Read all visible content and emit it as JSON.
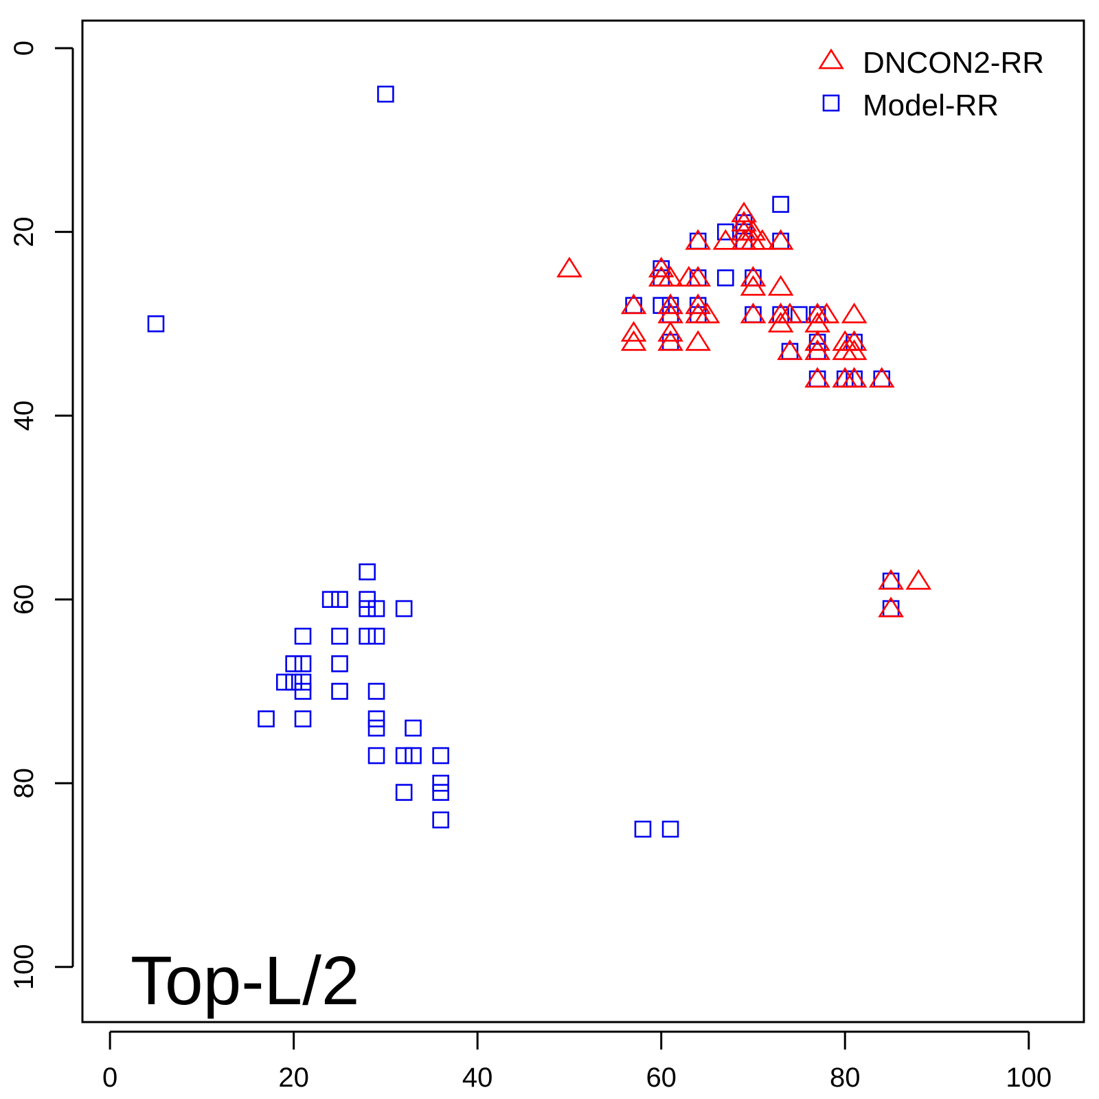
{
  "chart_data": {
    "type": "scatter",
    "title": "",
    "xlabel": "",
    "ylabel": "",
    "panel_label": "Top-L/2",
    "xlim": [
      -3,
      106
    ],
    "ylim": [
      -3,
      106
    ],
    "y_reversed": true,
    "x_ticks": [
      "0",
      "20",
      "40",
      "60",
      "80",
      "100"
    ],
    "y_ticks": [
      "0",
      "20",
      "40",
      "60",
      "80",
      "100"
    ],
    "grid": false,
    "legend": {
      "placement": "top-right",
      "entries": [
        {
          "label": "DNCON2-RR",
          "marker": "triangle",
          "color": "#ff0000"
        },
        {
          "label": "Model-RR",
          "marker": "square",
          "color": "#0000ee"
        }
      ]
    },
    "series": [
      {
        "name": "DNCON2-RR",
        "marker": "triangle",
        "color": "#ff0000",
        "points": [
          [
            50,
            24
          ],
          [
            57,
            28
          ],
          [
            57,
            31
          ],
          [
            57,
            32
          ],
          [
            60,
            24
          ],
          [
            60,
            25
          ],
          [
            61,
            25
          ],
          [
            61,
            28
          ],
          [
            61,
            29
          ],
          [
            61,
            31
          ],
          [
            61,
            32
          ],
          [
            63,
            25
          ],
          [
            64,
            21
          ],
          [
            64,
            25
          ],
          [
            64,
            28
          ],
          [
            64,
            29
          ],
          [
            64,
            32
          ],
          [
            65,
            29
          ],
          [
            67,
            21
          ],
          [
            69,
            18
          ],
          [
            69,
            19
          ],
          [
            69,
            20
          ],
          [
            69,
            21
          ],
          [
            70,
            20
          ],
          [
            70,
            21
          ],
          [
            71,
            21
          ],
          [
            70,
            25
          ],
          [
            70,
            26
          ],
          [
            70,
            29
          ],
          [
            73,
            21
          ],
          [
            73,
            26
          ],
          [
            73,
            29
          ],
          [
            73,
            30
          ],
          [
            74,
            29
          ],
          [
            74,
            33
          ],
          [
            77,
            29
          ],
          [
            77,
            30
          ],
          [
            77,
            32
          ],
          [
            77,
            33
          ],
          [
            77,
            36
          ],
          [
            78,
            29
          ],
          [
            80,
            32
          ],
          [
            80,
            33
          ],
          [
            80,
            36
          ],
          [
            81,
            29
          ],
          [
            81,
            32
          ],
          [
            81,
            33
          ],
          [
            81,
            36
          ],
          [
            84,
            36
          ],
          [
            85,
            58
          ],
          [
            85,
            61
          ],
          [
            88,
            58
          ]
        ]
      },
      {
        "name": "Model-RR",
        "marker": "square",
        "color": "#0000ee",
        "points": [
          [
            5,
            30
          ],
          [
            30,
            5
          ],
          [
            17,
            73
          ],
          [
            19,
            69
          ],
          [
            20,
            67
          ],
          [
            20,
            69
          ],
          [
            21,
            64
          ],
          [
            21,
            67
          ],
          [
            21,
            69
          ],
          [
            21,
            70
          ],
          [
            21,
            73
          ],
          [
            24,
            60
          ],
          [
            25,
            60
          ],
          [
            25,
            64
          ],
          [
            25,
            67
          ],
          [
            25,
            70
          ],
          [
            28,
            57
          ],
          [
            28,
            60
          ],
          [
            28,
            61
          ],
          [
            28,
            64
          ],
          [
            29,
            61
          ],
          [
            29,
            64
          ],
          [
            29,
            70
          ],
          [
            29,
            73
          ],
          [
            29,
            74
          ],
          [
            29,
            77
          ],
          [
            32,
            61
          ],
          [
            32,
            77
          ],
          [
            32,
            81
          ],
          [
            33,
            74
          ],
          [
            33,
            77
          ],
          [
            36,
            77
          ],
          [
            36,
            80
          ],
          [
            36,
            81
          ],
          [
            36,
            84
          ],
          [
            58,
            85
          ],
          [
            61,
            85
          ],
          [
            57,
            28
          ],
          [
            60,
            24
          ],
          [
            60,
            25
          ],
          [
            60,
            28
          ],
          [
            61,
            28
          ],
          [
            61,
            29
          ],
          [
            61,
            32
          ],
          [
            64,
            21
          ],
          [
            64,
            25
          ],
          [
            64,
            28
          ],
          [
            64,
            29
          ],
          [
            67,
            20
          ],
          [
            67,
            25
          ],
          [
            69,
            19
          ],
          [
            69,
            20
          ],
          [
            69,
            21
          ],
          [
            70,
            25
          ],
          [
            70,
            29
          ],
          [
            73,
            17
          ],
          [
            73,
            21
          ],
          [
            73,
            29
          ],
          [
            74,
            33
          ],
          [
            75,
            29
          ],
          [
            77,
            29
          ],
          [
            77,
            32
          ],
          [
            77,
            33
          ],
          [
            77,
            36
          ],
          [
            80,
            36
          ],
          [
            81,
            32
          ],
          [
            81,
            36
          ],
          [
            84,
            36
          ],
          [
            85,
            58
          ],
          [
            85,
            61
          ]
        ]
      }
    ]
  }
}
